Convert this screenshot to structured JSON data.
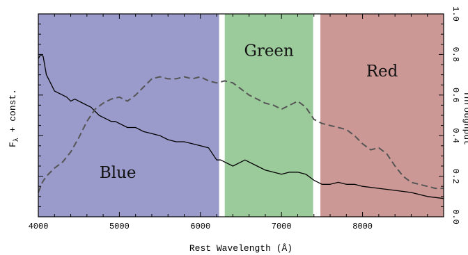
{
  "chart_data": {
    "type": "line",
    "xlabel": "Rest Wavelength (Å)",
    "ylabel_left": "F",
    "ylabel_left_sub": "λ",
    "ylabel_left_tail": " + const.",
    "ylabel_right": "Throughput",
    "xlim": [
      4000,
      9000
    ],
    "ylim_right": [
      0,
      1.0
    ],
    "x_ticks": [
      4000,
      5000,
      6000,
      7000,
      8000
    ],
    "y_right_ticks": [
      0.0,
      0.2,
      0.4,
      0.6,
      0.8,
      1.0
    ],
    "y_right_tick_labels": [
      "0.0",
      "0.2",
      "0.4",
      "0.6",
      "0.8",
      "1.0"
    ],
    "bands": [
      {
        "name": "Blue",
        "x0": 4000,
        "x1": 6230,
        "color": "#9a9acb"
      },
      {
        "name": "Green",
        "x0": 6300,
        "x1": 7390,
        "color": "#9ccb9b"
      },
      {
        "name": "Red",
        "x0": 7480,
        "x1": 9000,
        "color": "#cc9895"
      }
    ],
    "series": [
      {
        "style": "solid",
        "color": "#000000",
        "x": [
          4000,
          4030,
          4060,
          4100,
          4150,
          4200,
          4250,
          4300,
          4350,
          4400,
          4450,
          4500,
          4550,
          4600,
          4650,
          4700,
          4750,
          4800,
          4850,
          4900,
          4950,
          5000,
          5100,
          5200,
          5300,
          5400,
          5500,
          5600,
          5700,
          5800,
          5900,
          6000,
          6100,
          6200,
          6250,
          6300,
          6400,
          6500,
          6550,
          6600,
          6700,
          6800,
          6900,
          7000,
          7100,
          7200,
          7300,
          7400,
          7500,
          7600,
          7700,
          7800,
          7900,
          8000,
          8200,
          8400,
          8600,
          8800,
          9000
        ],
        "y": [
          0.78,
          0.8,
          0.79,
          0.7,
          0.66,
          0.62,
          0.61,
          0.6,
          0.59,
          0.57,
          0.58,
          0.57,
          0.56,
          0.55,
          0.54,
          0.52,
          0.5,
          0.49,
          0.48,
          0.47,
          0.47,
          0.46,
          0.44,
          0.44,
          0.42,
          0.41,
          0.4,
          0.38,
          0.37,
          0.37,
          0.36,
          0.35,
          0.34,
          0.28,
          0.28,
          0.27,
          0.25,
          0.27,
          0.28,
          0.27,
          0.25,
          0.23,
          0.22,
          0.21,
          0.22,
          0.22,
          0.21,
          0.18,
          0.16,
          0.16,
          0.17,
          0.16,
          0.16,
          0.15,
          0.14,
          0.13,
          0.12,
          0.1,
          0.09
        ]
      },
      {
        "style": "dashed",
        "color": "#555555",
        "x": [
          4000,
          4050,
          4100,
          4200,
          4300,
          4400,
          4500,
          4600,
          4700,
          4800,
          4900,
          5000,
          5100,
          5200,
          5300,
          5400,
          5500,
          5600,
          5700,
          5800,
          5900,
          6000,
          6100,
          6200,
          6300,
          6400,
          6500,
          6600,
          6700,
          6800,
          6900,
          7000,
          7100,
          7200,
          7300,
          7400,
          7500,
          7600,
          7700,
          7800,
          7900,
          8000,
          8100,
          8200,
          8300,
          8400,
          8500,
          8600,
          8700,
          8800,
          8900,
          9000
        ],
        "y": [
          0.12,
          0.17,
          0.2,
          0.24,
          0.27,
          0.32,
          0.39,
          0.47,
          0.53,
          0.56,
          0.58,
          0.59,
          0.57,
          0.6,
          0.64,
          0.68,
          0.69,
          0.68,
          0.68,
          0.69,
          0.68,
          0.69,
          0.67,
          0.66,
          0.67,
          0.66,
          0.63,
          0.6,
          0.58,
          0.56,
          0.55,
          0.53,
          0.55,
          0.57,
          0.54,
          0.48,
          0.46,
          0.45,
          0.44,
          0.43,
          0.4,
          0.36,
          0.33,
          0.34,
          0.31,
          0.25,
          0.2,
          0.17,
          0.16,
          0.15,
          0.14,
          0.14
        ]
      }
    ]
  }
}
